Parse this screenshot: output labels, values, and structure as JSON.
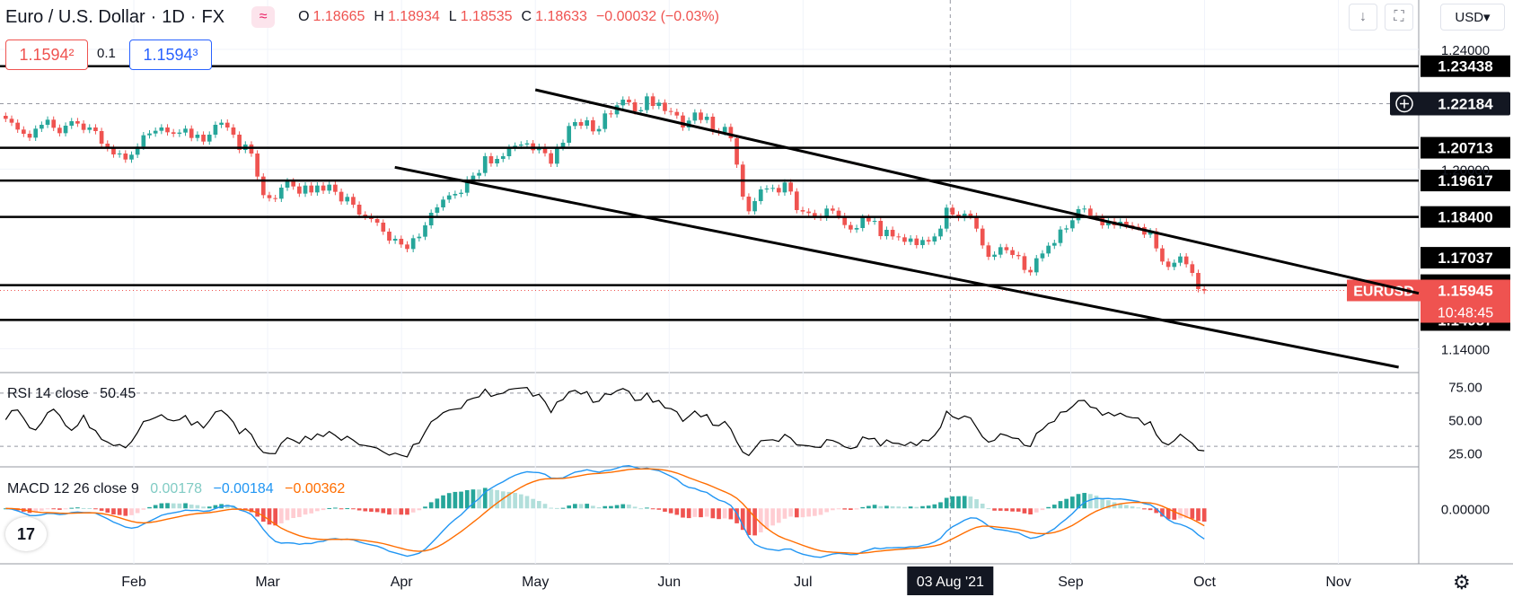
{
  "header": {
    "symbol": "Euro / U.S. Dollar",
    "interval": "1D",
    "exchange": "FX",
    "logo_glyph": "≈",
    "ohlc": {
      "o_label": "O",
      "o": "1.18665",
      "h_label": "H",
      "h": "1.18934",
      "l_label": "L",
      "l": "1.18535",
      "c_label": "C",
      "c": "1.18633",
      "change": "−0.00032 (−0.03%)"
    }
  },
  "trade": {
    "sell_price": "1.1594²",
    "spread": "0.1",
    "buy_price": "1.1594³"
  },
  "toolbar": {
    "down_glyph": "↓",
    "fullscreen_glyph": "⛶",
    "currency": "USD▾"
  },
  "rsi": {
    "label": "RSI 14 close",
    "value": "50.45"
  },
  "macd": {
    "label": "MACD 12 26 close 9",
    "hist": "0.00178",
    "macd": "−0.00184",
    "signal": "−0.00362"
  },
  "crosshair_date": "03 Aug '21",
  "logo_text": "17",
  "gear_glyph": "⚙",
  "chart_data": {
    "type": "candlestick",
    "symbol": "EURUSD",
    "price_axis_ticks": [
      1.24,
      1.2,
      1.14
    ],
    "time_axis_ticks": [
      "Feb",
      "Mar",
      "Apr",
      "May",
      "Jun",
      "Jul",
      "03 Aug '21",
      "Sep",
      "Oct",
      "Nov"
    ],
    "time_axis_month_positions": [
      1.0,
      2.0,
      3.0,
      4.0,
      5.0,
      6.0,
      7.1,
      8.0,
      9.0,
      10.0
    ],
    "horizontal_levels": [
      "1.23438",
      "1.20713",
      "1.19617",
      "1.18400",
      "1.16122",
      "1.14957"
    ],
    "horizontal_level_values": [
      1.23438,
      1.20713,
      1.19617,
      1.184,
      1.16122,
      1.14957
    ],
    "extra_labels": [
      "1.17037"
    ],
    "extra_label_values": [
      1.17037
    ],
    "crosshair_price": "1.22184",
    "crosshair_price_value": 1.22184,
    "last_price": {
      "symbol": "EURUSD",
      "price": "1.15945",
      "countdown": "10:48:45",
      "value": 1.15945
    },
    "y_range": [
      1.132,
      1.2445
    ],
    "x_range": [
      0.0,
      10.6
    ],
    "candles_close": [
      1.2168,
      1.2155,
      1.2132,
      1.2118,
      1.2105,
      1.2135,
      1.2148,
      1.2165,
      1.2138,
      1.212,
      1.2145,
      1.216,
      1.2152,
      1.2131,
      1.2139,
      1.2127,
      1.2085,
      1.207,
      1.2049,
      1.2052,
      1.2032,
      1.2048,
      1.2075,
      1.2113,
      1.2119,
      1.2128,
      1.2139,
      1.2123,
      1.2118,
      1.2122,
      1.2135,
      1.2104,
      1.2115,
      1.2092,
      1.2115,
      1.2148,
      1.2155,
      1.2139,
      1.2115,
      1.2064,
      1.2082,
      1.2052,
      1.1975,
      1.1913,
      1.1903,
      1.1901,
      1.1938,
      1.1959,
      1.1942,
      1.1918,
      1.1945,
      1.1922,
      1.1945,
      1.1928,
      1.1948,
      1.1924,
      1.1892,
      1.1907,
      1.1881,
      1.1848,
      1.1841,
      1.1833,
      1.1821,
      1.1791,
      1.1761,
      1.1767,
      1.1748,
      1.1733,
      1.1769,
      1.1774,
      1.1812,
      1.1854,
      1.1872,
      1.1898,
      1.1912,
      1.1917,
      1.1921,
      1.1965,
      1.1978,
      1.1987,
      1.2043,
      1.2019,
      1.2034,
      1.2043,
      1.2071,
      1.2078,
      1.2082,
      1.2086,
      1.2063,
      1.2074,
      1.2053,
      1.2018,
      1.2073,
      1.2088,
      1.2144,
      1.2157,
      1.2145,
      1.2163,
      1.2126,
      1.2134,
      1.2186,
      1.2183,
      1.2213,
      1.2232,
      1.2223,
      1.2193,
      1.2197,
      1.2243,
      1.2211,
      1.2222,
      1.2194,
      1.2191,
      1.2179,
      1.2139,
      1.2162,
      1.2189,
      1.2164,
      1.2175,
      1.2126,
      1.2123,
      1.2141,
      1.2103,
      1.2015,
      1.1908,
      1.1859,
      1.1893,
      1.1932,
      1.1935,
      1.1937,
      1.1922,
      1.1955,
      1.1925,
      1.1863,
      1.1858,
      1.1853,
      1.1841,
      1.1838,
      1.1868,
      1.1861,
      1.1843,
      1.1813,
      1.1798,
      1.1803,
      1.1838,
      1.1825,
      1.1827,
      1.1776,
      1.1797,
      1.1775,
      1.1772,
      1.1757,
      1.1768,
      1.1746,
      1.1763,
      1.1758,
      1.1775,
      1.1801,
      1.1871,
      1.1848,
      1.1837,
      1.1851,
      1.1843,
      1.1801,
      1.1745,
      1.1707,
      1.1714,
      1.1739,
      1.1729,
      1.1713,
      1.1709,
      1.1663,
      1.1655,
      1.1702,
      1.1718,
      1.1744,
      1.1753,
      1.1798,
      1.1802,
      1.1829,
      1.1866,
      1.1868,
      1.1844,
      1.1839,
      1.1812,
      1.1825,
      1.1812,
      1.1824,
      1.1812,
      1.1807,
      1.1806,
      1.1781,
      1.1792,
      1.1735,
      1.1691,
      1.1673,
      1.1687,
      1.1708,
      1.1682,
      1.1653,
      1.1599,
      1.1594
    ],
    "channel_upper": {
      "from": [
        4.0,
        1.2265
      ],
      "to": [
        10.6,
        1.1585
      ]
    },
    "channel_lower": {
      "from": [
        2.95,
        1.2006
      ],
      "to": [
        10.45,
        1.1338
      ]
    },
    "rsi_y_ticks": [
      "75.00",
      "50.00",
      "25.00"
    ],
    "rsi_y_tick_values": [
      75,
      50,
      25
    ],
    "rsi_levels": [
      70,
      30
    ],
    "rsi_range": [
      20,
      80
    ],
    "macd_y_ticks": [
      "0.00000"
    ],
    "macd_y_tick_values": [
      0
    ],
    "macd_range": [
      -0.0072,
      0.0052
    ],
    "colors": {
      "up": "#26a69a",
      "down": "#ef5350",
      "macd_line": "#2196f3",
      "signal_line": "#ff6d00",
      "hist_pos_strong": "#26a69a",
      "hist_pos_weak": "#b2dfdb",
      "hist_neg_strong": "#ef5350",
      "hist_neg_weak": "#ffcdd2",
      "text": "#131722",
      "axis": "#787b86"
    }
  }
}
